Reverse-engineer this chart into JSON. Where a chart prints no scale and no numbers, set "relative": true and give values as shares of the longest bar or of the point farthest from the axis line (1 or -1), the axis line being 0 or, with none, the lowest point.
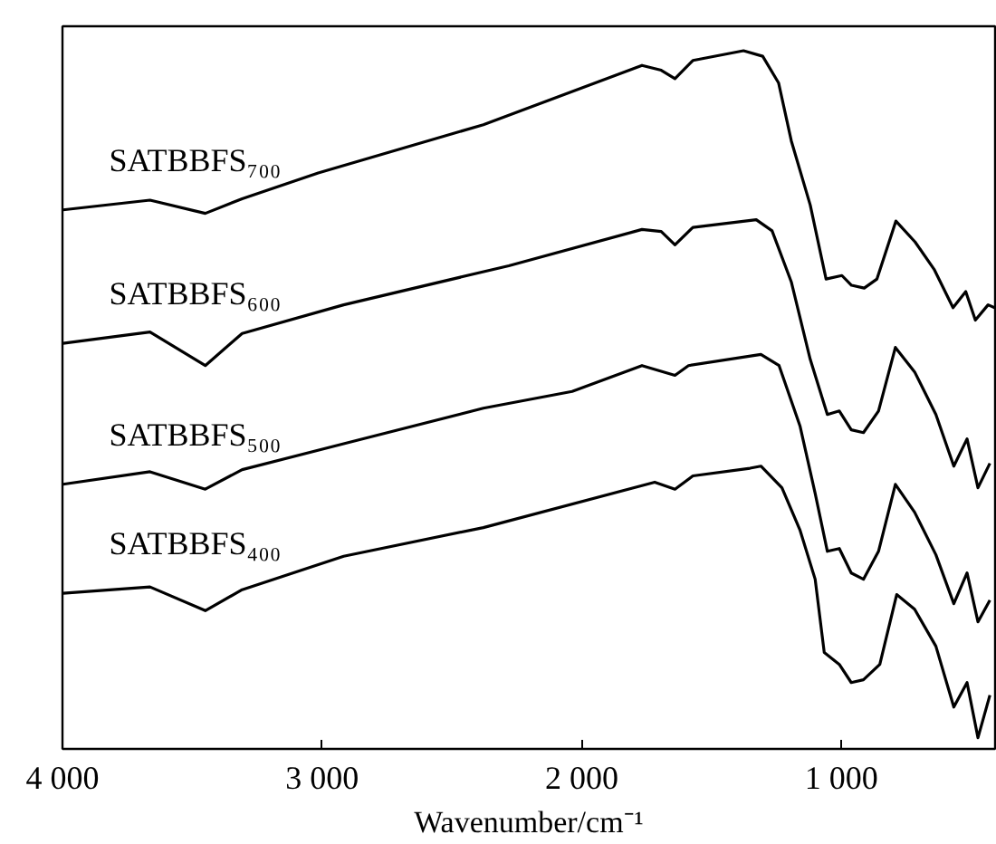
{
  "chart_data": {
    "type": "line",
    "relative": true,
    "xlabel": "Wavenumber/cm⁻¹",
    "xlim": [
      4000,
      408
    ],
    "xticks": [
      {
        "value": 4000,
        "label": "4 000"
      },
      {
        "value": 3000,
        "label": "3 000"
      },
      {
        "value": 2000,
        "label": "2 000"
      },
      {
        "value": 1000,
        "label": "1 000"
      }
    ],
    "grid": false,
    "legend": false,
    "marker": "none",
    "line_style": "solid",
    "tick_labels": "x",
    "series": [
      {
        "name": "SATBBFS₇₀₀",
        "color": "#000000",
        "x": [
          3998,
          3663,
          3450,
          3308,
          3015,
          2379,
          1768,
          1694,
          1641,
          1572,
          1377,
          1303,
          1242,
          1193,
          1120,
          1059,
          998,
          961,
          912,
          863,
          790,
          716,
          643,
          570,
          521,
          484,
          435,
          410
        ],
        "values": [
          0.772,
          0.786,
          0.767,
          0.788,
          0.825,
          0.894,
          0.979,
          0.972,
          0.96,
          0.986,
          1.0,
          0.992,
          0.954,
          0.871,
          0.779,
          0.673,
          0.678,
          0.664,
          0.66,
          0.673,
          0.756,
          0.726,
          0.687,
          0.632,
          0.655,
          0.614,
          0.636,
          0.632
        ]
      },
      {
        "name": "SATBBFS₆₀₀",
        "color": "#000000",
        "x": [
          3998,
          3663,
          3450,
          3308,
          2917,
          2281,
          1768,
          1694,
          1641,
          1572,
          1328,
          1267,
          1193,
          1120,
          1054,
          1008,
          962,
          915,
          857,
          792,
          718,
          636,
          567,
          516,
          474,
          428
        ],
        "values": [
          0.581,
          0.597,
          0.549,
          0.595,
          0.636,
          0.692,
          0.744,
          0.741,
          0.722,
          0.747,
          0.758,
          0.742,
          0.669,
          0.558,
          0.479,
          0.484,
          0.457,
          0.453,
          0.484,
          0.575,
          0.54,
          0.479,
          0.405,
          0.444,
          0.374,
          0.409
        ]
      },
      {
        "name": "SATBBFS₅₀₀",
        "color": "#000000",
        "x": [
          3998,
          3663,
          3450,
          3308,
          2917,
          2379,
          2037,
          1768,
          1641,
          1589,
          1310,
          1240,
          1159,
          1101,
          1054,
          1008,
          962,
          915,
          857,
          792,
          718,
          636,
          567,
          516,
          474,
          428
        ],
        "values": [
          0.379,
          0.397,
          0.372,
          0.4,
          0.437,
          0.488,
          0.512,
          0.549,
          0.535,
          0.549,
          0.565,
          0.549,
          0.462,
          0.366,
          0.283,
          0.287,
          0.252,
          0.243,
          0.283,
          0.379,
          0.339,
          0.278,
          0.208,
          0.252,
          0.182,
          0.213
        ]
      },
      {
        "name": "SATBBFS₄₀₀",
        "color": "#000000",
        "x": [
          3998,
          3663,
          3450,
          3308,
          2917,
          2379,
          1719,
          1641,
          1572,
          1352,
          1310,
          1229,
          1159,
          1101,
          1066,
          1008,
          962,
          915,
          852,
          787,
          718,
          636,
          567,
          516,
          474,
          428
        ],
        "values": [
          0.223,
          0.232,
          0.198,
          0.228,
          0.276,
          0.317,
          0.382,
          0.372,
          0.391,
          0.402,
          0.405,
          0.374,
          0.313,
          0.243,
          0.138,
          0.121,
          0.095,
          0.099,
          0.121,
          0.221,
          0.2,
          0.147,
          0.06,
          0.095,
          0.016,
          0.077
        ]
      }
    ]
  }
}
